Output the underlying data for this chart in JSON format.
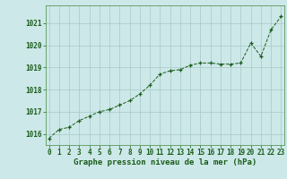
{
  "x": [
    0,
    1,
    2,
    3,
    4,
    5,
    6,
    7,
    8,
    9,
    10,
    11,
    12,
    13,
    14,
    15,
    16,
    17,
    18,
    19,
    20,
    21,
    22,
    23
  ],
  "y": [
    1015.8,
    1016.2,
    1016.3,
    1016.6,
    1016.8,
    1017.0,
    1017.1,
    1017.3,
    1017.5,
    1017.8,
    1018.2,
    1018.7,
    1018.85,
    1018.9,
    1019.1,
    1019.2,
    1019.2,
    1019.15,
    1019.15,
    1019.2,
    1020.1,
    1019.5,
    1020.7,
    1021.3
  ],
  "line_color": "#1a5c1a",
  "marker": "+",
  "marker_size": 3,
  "bg_color": "#cce8e8",
  "grid_color": "#aac8c8",
  "xlabel": "Graphe pression niveau de la mer (hPa)",
  "xlabel_color": "#1a5c1a",
  "xlabel_fontsize": 6.5,
  "ylabel_ticks": [
    1016,
    1017,
    1018,
    1019,
    1020,
    1021
  ],
  "xlim": [
    -0.3,
    23.3
  ],
  "ylim": [
    1015.5,
    1021.8
  ],
  "tick_color": "#1a5c1a",
  "tick_fontsize": 5.5,
  "spine_color": "#5a9a5a"
}
